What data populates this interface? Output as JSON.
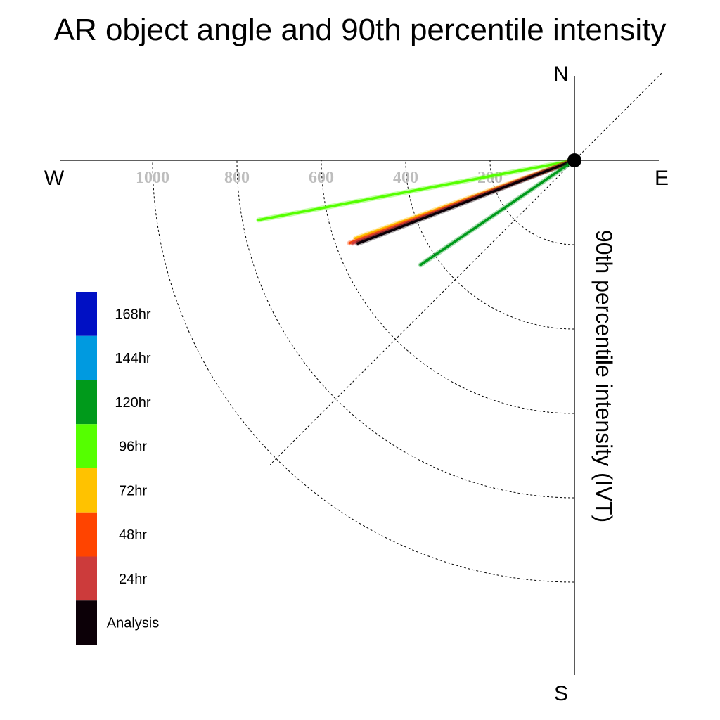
{
  "chart_data": {
    "type": "polar-line",
    "title": "AR object angle and 90th percentile intensity",
    "radial_label": "90th percentile intensity (IVT)",
    "compass": {
      "north": "N",
      "south": "S",
      "east": "E",
      "west": "W"
    },
    "radial_ticks": [
      200,
      400,
      600,
      800,
      1000
    ],
    "radial_tick_labels": [
      "200",
      "400",
      "600",
      "800",
      "1000"
    ],
    "radial_max": 1200,
    "angle_units": "degrees clockwise from N",
    "series": [
      {
        "name": "96hr",
        "color": "#55ff00",
        "angle": 259.3,
        "value": 762
      },
      {
        "name": "72hr",
        "color": "#ffc200",
        "angle": 250.4,
        "value": 551
      },
      {
        "name": "48hr",
        "color": "#ff4400",
        "angle": 249.8,
        "value": 568
      },
      {
        "name": "24hr",
        "color": "#cc3b3b",
        "angle": 249.5,
        "value": 561
      },
      {
        "name": "Analysis",
        "color": "#0c0007",
        "angle": 249.0,
        "value": 550
      },
      {
        "name": "120hr",
        "color": "#009a1b",
        "angle": 235.8,
        "value": 441
      }
    ],
    "legend": {
      "placement": "left",
      "entries": [
        {
          "label": "168hr",
          "color": "#0010c4"
        },
        {
          "label": "144hr",
          "color": "#009ae0"
        },
        {
          "label": "120hr",
          "color": "#009a1b"
        },
        {
          "label": "96hr",
          "color": "#55ff00"
        },
        {
          "label": "72hr",
          "color": "#ffc200"
        },
        {
          "label": "48hr",
          "color": "#ff4400"
        },
        {
          "label": "24hr",
          "color": "#cc3b3b"
        },
        {
          "label": "Analysis",
          "color": "#0c0007"
        }
      ]
    }
  }
}
